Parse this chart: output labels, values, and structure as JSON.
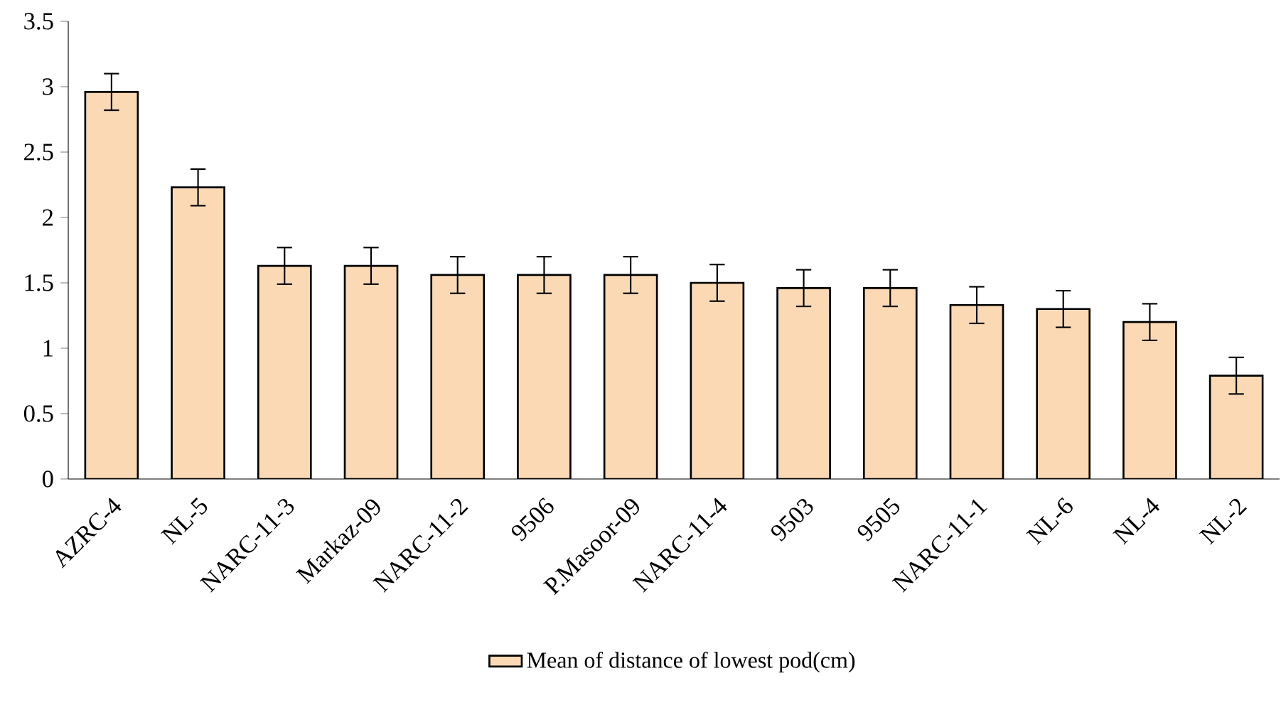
{
  "chart_data": {
    "type": "bar",
    "categories": [
      "AZRC-4",
      "NL-5",
      "NARC-11-3",
      "Markaz-09",
      "NARC-11-2",
      "9506",
      "P.Masoor-09",
      "NARC-11-4",
      "9503",
      "9505",
      "NARC-11-1",
      "NL-6",
      "NL-4",
      "NL-2"
    ],
    "series": [
      {
        "name": "Mean of distance of lowest pod(cm)",
        "color": "#fbd9b4",
        "values": [
          2.96,
          2.23,
          1.63,
          1.63,
          1.56,
          1.56,
          1.56,
          1.5,
          1.46,
          1.46,
          1.33,
          1.3,
          1.2,
          0.79
        ],
        "errors": [
          0.14,
          0.14,
          0.14,
          0.14,
          0.14,
          0.14,
          0.14,
          0.14,
          0.14,
          0.14,
          0.14,
          0.14,
          0.14,
          0.14
        ]
      }
    ],
    "ylim": [
      0,
      3.5
    ],
    "yticks": [
      0,
      0.5,
      1,
      1.5,
      2,
      2.5,
      3,
      3.5
    ],
    "grid": false,
    "legend": "bottom"
  }
}
